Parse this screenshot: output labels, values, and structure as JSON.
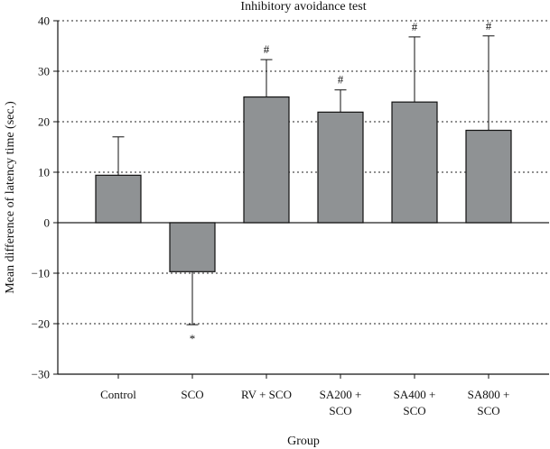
{
  "chart_data": {
    "type": "bar",
    "title": "Inhibitory avoidance test",
    "xlabel": "Group",
    "ylabel": "Mean difference of latency time (sec.)",
    "ylim": [
      -30,
      40
    ],
    "yticks": [
      40,
      30,
      20,
      10,
      0,
      -10,
      -20,
      -30
    ],
    "grid": true,
    "categories": [
      [
        "Control"
      ],
      [
        "SCO"
      ],
      [
        "RV + SCO"
      ],
      [
        "SA200 +",
        "SCO"
      ],
      [
        "SA400 +",
        "SCO"
      ],
      [
        "SA800 +",
        "SCO"
      ]
    ],
    "values": [
      9.4,
      -9.7,
      24.9,
      21.9,
      23.9,
      18.3
    ],
    "error": [
      7.6,
      10.5,
      7.4,
      4.4,
      12.9,
      18.7
    ],
    "annotations": [
      "",
      "*",
      "#",
      "#",
      "#",
      "#"
    ],
    "bar_color": "#8f9294"
  }
}
